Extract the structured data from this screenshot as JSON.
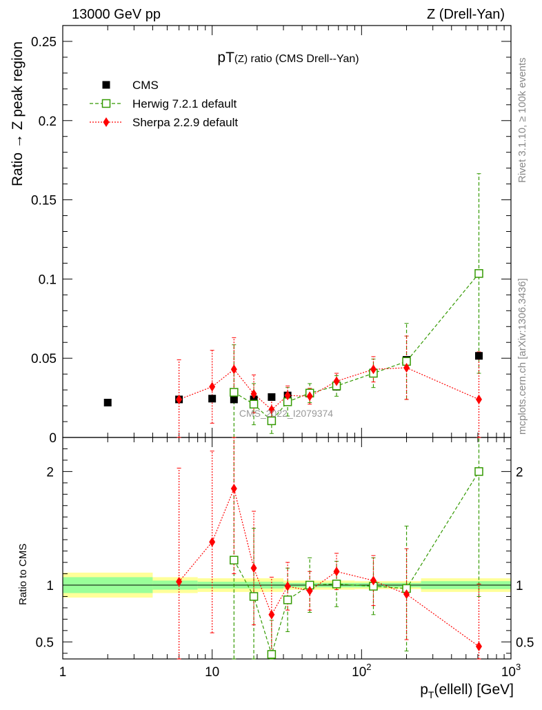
{
  "header": {
    "left": "13000 GeV pp",
    "right": "Z (Drell-Yan)"
  },
  "side": {
    "rivet": "Rivet 3.1.10, ≥ 100k events",
    "mcplots": "mcplots.cern.ch [arXiv:1306.3436]"
  },
  "watermark": "CMS_2022_I2079374",
  "chart_data": {
    "type": "scatter",
    "title": "pT(Z) ratio (CMS Drell--Yan)",
    "xlabel": "p_T(ellell) [GeV]",
    "ylabel": "Ratio → Z peak region",
    "ratio_ylabel": "Ratio to CMS",
    "xscale": "log",
    "xlim": [
      1,
      1000
    ],
    "ylim": [
      0,
      0.26
    ],
    "ratio_ylim": [
      0.35,
      2.3
    ],
    "x_ticks": [
      {
        "value": 1,
        "label": "1"
      },
      {
        "value": 10,
        "label": "10"
      },
      {
        "value": 100,
        "label": "10",
        "exp": "2"
      },
      {
        "value": 1000,
        "label": "10",
        "exp": "3"
      }
    ],
    "y_ticks": [
      {
        "value": 0,
        "label": "0"
      },
      {
        "value": 0.05,
        "label": "0.05"
      },
      {
        "value": 0.1,
        "label": "0.1"
      },
      {
        "value": 0.15,
        "label": "0.15"
      },
      {
        "value": 0.2,
        "label": "0.2"
      },
      {
        "value": 0.25,
        "label": "0.25"
      }
    ],
    "ratio_ticks": [
      {
        "value": 0.5,
        "label": "0.5"
      },
      {
        "value": 1,
        "label": "1"
      },
      {
        "value": 2,
        "label": "2"
      }
    ],
    "legend_position": "top-left",
    "series": [
      {
        "name": "CMS",
        "color": "#000000",
        "marker": "square",
        "x": [
          2,
          6,
          10,
          14,
          19,
          25,
          32,
          45,
          68,
          120,
          200,
          610
        ],
        "y": [
          0.022,
          0.024,
          0.0245,
          0.024,
          0.024,
          0.0255,
          0.0265,
          0.028,
          0.032,
          0.041,
          0.049,
          0.0515
        ]
      },
      {
        "name": "Herwig 7.2.1 default",
        "color": "#339900",
        "marker": "open-square",
        "line": "dashed",
        "x": [
          14,
          19,
          25,
          32,
          45,
          68,
          120,
          200,
          610
        ],
        "y": [
          0.0285,
          0.021,
          0.0105,
          0.0225,
          0.028,
          0.0325,
          0.0405,
          0.048,
          0.1035
        ],
        "err": [
          0.03,
          0.013,
          0.008,
          0.009,
          0.006,
          0.0065,
          0.009,
          0.024,
          0.063
        ],
        "ratio": [
          1.22,
          0.9,
          0.39,
          0.87,
          1.0,
          1.01,
          0.99,
          0.97,
          2.0
        ],
        "ratio_err": [
          1.1,
          0.6,
          0.3,
          0.28,
          0.24,
          0.2,
          0.25,
          0.55,
          1.1
        ]
      },
      {
        "name": "Sherpa 2.2.9 default",
        "color": "#ff0000",
        "marker": "diamond",
        "line": "dotted",
        "x": [
          6,
          10,
          14,
          19,
          25,
          32,
          45,
          68,
          120,
          200,
          610
        ],
        "y": [
          0.024,
          0.032,
          0.043,
          0.0275,
          0.0175,
          0.0265,
          0.026,
          0.0355,
          0.043,
          0.044,
          0.024
        ],
        "err": [
          0.025,
          0.023,
          0.02,
          0.012,
          0.008,
          0.006,
          0.005,
          0.005,
          0.008,
          0.02,
          0.03
        ],
        "ratio": [
          1.03,
          1.38,
          1.85,
          1.15,
          0.74,
          0.99,
          0.95,
          1.12,
          1.04,
          0.92,
          0.46
        ],
        "ratio_err": [
          1.0,
          0.8,
          0.75,
          0.5,
          0.33,
          0.21,
          0.17,
          0.16,
          0.22,
          0.4,
          0.55
        ]
      }
    ],
    "bands": [
      {
        "xmin": 1,
        "xmax": 4,
        "inner": 0.07,
        "outer": 0.11
      },
      {
        "xmin": 4,
        "xmax": 8,
        "inner": 0.04,
        "outer": 0.07
      },
      {
        "xmin": 8,
        "xmax": 30,
        "inner": 0.03,
        "outer": 0.06
      },
      {
        "xmin": 30,
        "xmax": 90,
        "inner": 0.02,
        "outer": 0.04
      },
      {
        "xmin": 90,
        "xmax": 250,
        "inner": 0.02,
        "outer": 0.035
      },
      {
        "xmin": 250,
        "xmax": 1000,
        "inner": 0.035,
        "outer": 0.06
      }
    ],
    "band_colors": {
      "inner": "#99ff99",
      "outer": "#ffff99"
    }
  }
}
